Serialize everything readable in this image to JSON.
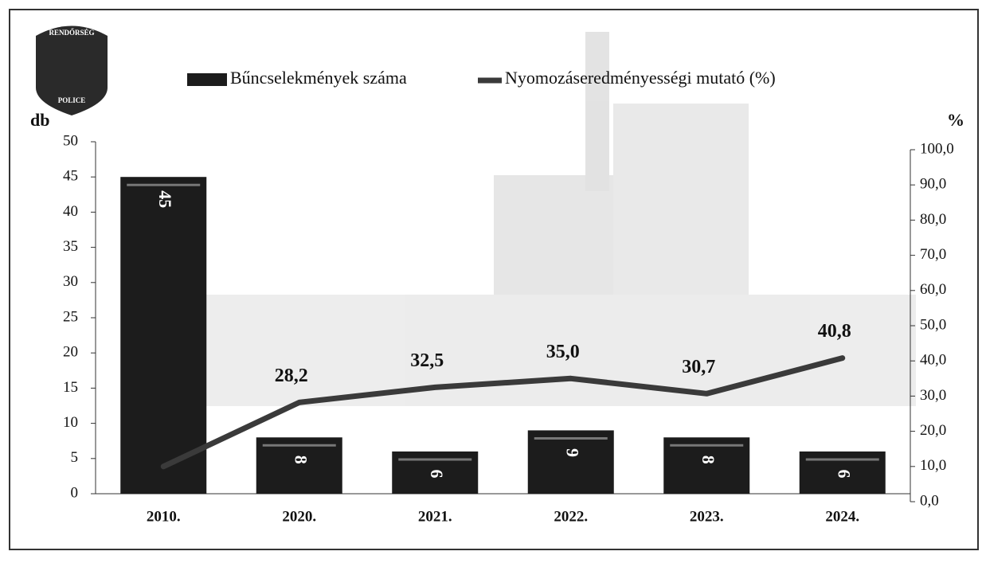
{
  "logo": {
    "top": "RENDŐRSÉG",
    "bottom": "POLICE"
  },
  "chart_data": {
    "type": "bar",
    "categories": [
      "2010.",
      "2020.",
      "2021.",
      "2022.",
      "2023.",
      "2024."
    ],
    "y_label": "db",
    "y2_label": "%",
    "ylim": [
      0,
      50
    ],
    "yticks": [
      0,
      5,
      10,
      15,
      20,
      25,
      30,
      35,
      40,
      45,
      50
    ],
    "y2lim": [
      0,
      100
    ],
    "y2ticks": [
      {
        "value": 0,
        "label": "0,0"
      },
      {
        "value": 10,
        "label": "10,0"
      },
      {
        "value": 20,
        "label": "20,0"
      },
      {
        "value": 30,
        "label": "30,0"
      },
      {
        "value": 40,
        "label": "40,0"
      },
      {
        "value": 50,
        "label": "50,0"
      },
      {
        "value": 60,
        "label": "60,0"
      },
      {
        "value": 70,
        "label": "70,0"
      },
      {
        "value": 80,
        "label": "80,0"
      },
      {
        "value": 90,
        "label": "90,0"
      },
      {
        "value": 100,
        "label": "100,0"
      }
    ],
    "legend": "top",
    "series": [
      {
        "name": "Bűncselekmények száma",
        "type": "bar",
        "color": "#1c1c1c",
        "values": [
          45,
          8,
          6,
          9,
          8,
          6
        ]
      },
      {
        "name": "Nyomozáseredményességi mutató (%)",
        "type": "line",
        "axis": "y2",
        "color": "#3a3a3a",
        "values": [
          10,
          28.2,
          32.5,
          35.0,
          30.7,
          40.8
        ],
        "value_labels": [
          null,
          "28,2",
          "32,5",
          "35,0",
          "30,7",
          "40,8"
        ]
      }
    ]
  }
}
